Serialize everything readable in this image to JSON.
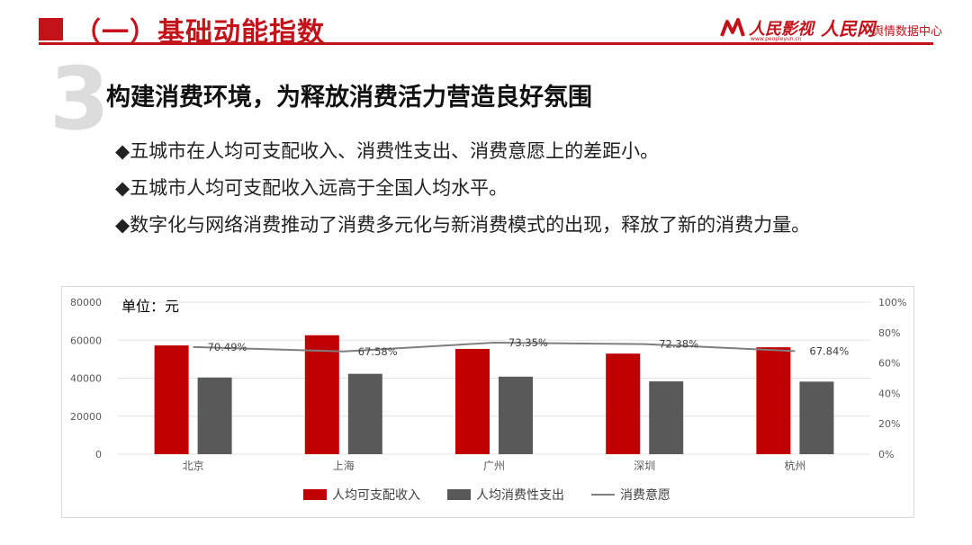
{
  "header": {
    "title": "（一）基础动能指数",
    "logo_left_text": "人民影视",
    "logo_left_url": "www.peopleyun.cn",
    "logo_right_text": "人民网",
    "logo_right_sub": "舆情数据中心",
    "accent_color": "#c4121a"
  },
  "section": {
    "number": "3",
    "title": "构建消费环境，为释放消费活力营造良好氛围"
  },
  "bullets": [
    "◆五城市在人均可支配收入、消费性支出、消费意愿上的差距小。",
    "◆五城市人均可支配收入远高于全国人均水平。",
    "◆数字化与网络消费推动了消费多元化与新消费模式的出现，释放了新的消费力量。"
  ],
  "chart_data": {
    "type": "bar",
    "unit_label": "单位：元",
    "categories": [
      "北京",
      "上海",
      "广州",
      "深圳",
      "杭州"
    ],
    "series": [
      {
        "name": "人均可支配收入",
        "type": "bar",
        "axis": "left",
        "color": "#c00000",
        "values": [
          57230,
          62596,
          55400,
          52938,
          56276
        ]
      },
      {
        "name": "人均消费性支出",
        "type": "bar",
        "axis": "left",
        "color": "#595959",
        "values": [
          40346,
          42304,
          40800,
          38320,
          38180
        ]
      },
      {
        "name": "消费意愿",
        "type": "line",
        "axis": "right",
        "color": "#7f7f7f",
        "values": [
          70.49,
          67.58,
          73.35,
          72.38,
          67.84
        ],
        "labels": [
          "70.49%",
          "67.58%",
          "73.35%",
          "72.38%",
          "67.84%"
        ]
      }
    ],
    "ylim_left": [
      0,
      80000
    ],
    "yticks_left": [
      "0",
      "20000",
      "40000",
      "60000",
      "80000"
    ],
    "ylim_right": [
      0,
      100
    ],
    "yticks_right": [
      "0%",
      "20%",
      "40%",
      "60%",
      "80%",
      "100%"
    ],
    "legend_position": "bottom",
    "grid": true
  }
}
